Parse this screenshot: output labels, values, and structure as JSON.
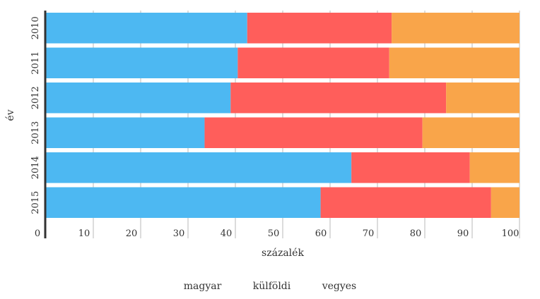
{
  "chart_data": {
    "type": "bar",
    "orientation": "horizontal",
    "stacked": true,
    "categories": [
      "2010",
      "2011",
      "2012",
      "2013",
      "2014",
      "2015"
    ],
    "series": [
      {
        "name": "magyar",
        "color": "#4db8f2",
        "values": [
          42.5,
          40.5,
          39.0,
          33.5,
          64.5,
          58.0
        ]
      },
      {
        "name": "külföldi",
        "color": "#ff5e5b",
        "values": [
          30.5,
          32.0,
          45.5,
          46.0,
          25.0,
          36.0
        ]
      },
      {
        "name": "vegyes",
        "color": "#f9a54a",
        "values": [
          27.0,
          27.5,
          15.5,
          20.5,
          10.5,
          6.0
        ]
      }
    ],
    "xlabel": "százalék",
    "ylabel": "év",
    "xlim": [
      0,
      100
    ],
    "xticks": [
      "0",
      "10",
      "20",
      "30",
      "40",
      "50",
      "60",
      "70",
      "80",
      "90",
      "100"
    ],
    "grid": true,
    "legend_position": "bottom"
  }
}
